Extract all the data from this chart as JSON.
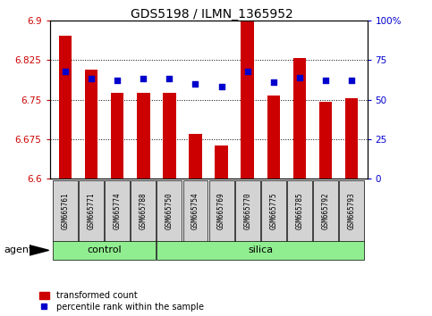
{
  "title": "GDS5198 / ILMN_1365952",
  "samples": [
    "GSM665761",
    "GSM665771",
    "GSM665774",
    "GSM665788",
    "GSM665750",
    "GSM665754",
    "GSM665769",
    "GSM665770",
    "GSM665775",
    "GSM665785",
    "GSM665792",
    "GSM665793"
  ],
  "groups": [
    "control",
    "control",
    "control",
    "control",
    "silica",
    "silica",
    "silica",
    "silica",
    "silica",
    "silica",
    "silica",
    "silica"
  ],
  "red_values": [
    6.872,
    6.806,
    6.762,
    6.763,
    6.762,
    6.685,
    6.663,
    6.899,
    6.757,
    6.829,
    6.745,
    6.752
  ],
  "blue_values": [
    68,
    63,
    62,
    63,
    63,
    60,
    58,
    68,
    61,
    64,
    62,
    62
  ],
  "ylim_left": [
    6.6,
    6.9
  ],
  "ylim_right": [
    0,
    100
  ],
  "yticks_left": [
    6.6,
    6.675,
    6.75,
    6.825,
    6.9
  ],
  "yticks_right": [
    0,
    25,
    50,
    75,
    100
  ],
  "ytick_labels_right": [
    "0",
    "25",
    "50",
    "75",
    "100%"
  ],
  "bar_color": "#CC0000",
  "dot_color": "#0000CC",
  "bar_width": 0.5,
  "plot_bg_color": "#ffffff",
  "left_tick_color": "#CC0000",
  "right_tick_color": "#0000CC",
  "sample_box_color": "#D3D3D3",
  "group_color": "#90EE90",
  "legend_items": [
    "transformed count",
    "percentile rank within the sample"
  ],
  "agent_label": "agent",
  "group_label_control": "control",
  "group_label_silica": "silica",
  "control_count": 4,
  "silica_count": 8
}
